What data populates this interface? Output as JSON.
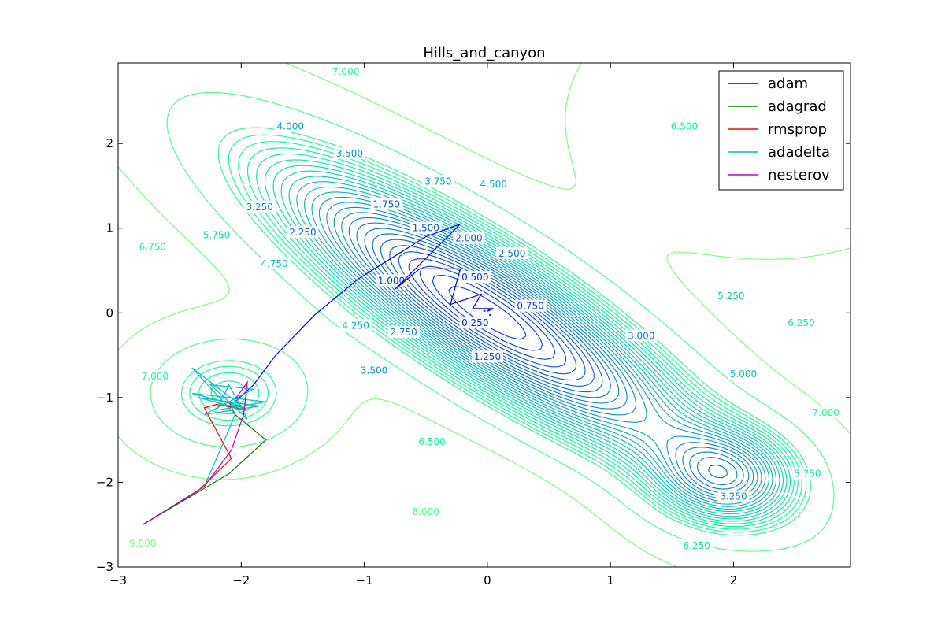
{
  "chart_data": {
    "type": "line",
    "title": "Hills_and_canyon",
    "xlabel": "",
    "ylabel": "",
    "xlim": [
      -3,
      2.95
    ],
    "ylim": [
      -3,
      2.95
    ],
    "x_ticks": [
      -3,
      -2,
      -1,
      0,
      1,
      2
    ],
    "y_ticks": [
      -3,
      -2,
      -1,
      0,
      1,
      2
    ],
    "x_tick_labels": [
      "−3",
      "−2",
      "−1",
      "0",
      "1",
      "2"
    ],
    "y_tick_labels": [
      "−3",
      "−2",
      "−1",
      "0",
      "1",
      "2"
    ],
    "grid": false,
    "legend_position": "top-right",
    "contours": {
      "levels": [
        0.25,
        0.5,
        0.75,
        1.0,
        1.25,
        1.5,
        1.75,
        2.0,
        2.25,
        2.5,
        2.75,
        3.0,
        3.25,
        3.5,
        3.75,
        4.0,
        4.25,
        4.5,
        4.75,
        5.0,
        5.25,
        5.5,
        5.75,
        6.0,
        6.25,
        6.5,
        6.75,
        7.0,
        8.0,
        9.0
      ],
      "labels": [
        {
          "text": "7.000",
          "x": -1.15,
          "y": 2.85
        },
        {
          "text": "4.000",
          "x": -1.6,
          "y": 2.2
        },
        {
          "text": "3.500",
          "x": -1.12,
          "y": 1.88
        },
        {
          "text": "3.750",
          "x": -0.4,
          "y": 1.55
        },
        {
          "text": "4.500",
          "x": 0.05,
          "y": 1.52
        },
        {
          "text": "6.500",
          "x": 1.6,
          "y": 2.2
        },
        {
          "text": "1.750",
          "x": -0.82,
          "y": 1.28
        },
        {
          "text": "1.500",
          "x": -0.5,
          "y": 1.0
        },
        {
          "text": "2.000",
          "x": -0.15,
          "y": 0.88
        },
        {
          "text": "2.500",
          "x": 0.2,
          "y": 0.7
        },
        {
          "text": "3.250",
          "x": -1.85,
          "y": 1.25
        },
        {
          "text": "2.250",
          "x": -1.5,
          "y": 0.95
        },
        {
          "text": "5.750",
          "x": -2.2,
          "y": 0.92
        },
        {
          "text": "4.750",
          "x": -1.73,
          "y": 0.58
        },
        {
          "text": "6.750",
          "x": -2.72,
          "y": 0.78
        },
        {
          "text": "1.000",
          "x": -0.78,
          "y": 0.38
        },
        {
          "text": "0.500",
          "x": -0.1,
          "y": 0.42
        },
        {
          "text": "0.750",
          "x": 0.35,
          "y": 0.08
        },
        {
          "text": "0.250",
          "x": -0.1,
          "y": -0.12
        },
        {
          "text": "4.250",
          "x": -1.07,
          "y": -0.15
        },
        {
          "text": "2.750",
          "x": -0.68,
          "y": -0.23
        },
        {
          "text": "1.250",
          "x": 0.0,
          "y": -0.52
        },
        {
          "text": "3.500",
          "x": -0.92,
          "y": -0.68
        },
        {
          "text": "3.000",
          "x": 1.25,
          "y": -0.27
        },
        {
          "text": "5.250",
          "x": 1.98,
          "y": 0.2
        },
        {
          "text": "5.000",
          "x": 2.08,
          "y": -0.72
        },
        {
          "text": "6.250",
          "x": 2.55,
          "y": -0.12
        },
        {
          "text": "7.000",
          "x": 2.75,
          "y": -1.18
        },
        {
          "text": "5.750",
          "x": 2.6,
          "y": -1.9
        },
        {
          "text": "7.000",
          "x": -2.7,
          "y": -0.75
        },
        {
          "text": "6.500",
          "x": -0.45,
          "y": -1.52
        },
        {
          "text": "8.000",
          "x": -0.5,
          "y": -2.35
        },
        {
          "text": "3.250",
          "x": 2.0,
          "y": -2.17
        },
        {
          "text": "6.250",
          "x": 1.7,
          "y": -2.75
        },
        {
          "text": "9.000",
          "x": -2.8,
          "y": -2.72
        }
      ]
    },
    "series": [
      {
        "name": "adam",
        "color": "#0000ff",
        "points": [
          [
            -2.05,
            -1.05
          ],
          [
            -1.9,
            -0.85
          ],
          [
            -1.72,
            -0.5
          ],
          [
            -1.4,
            -0.02
          ],
          [
            -1.05,
            0.4
          ],
          [
            -0.5,
            0.9
          ],
          [
            -0.22,
            1.05
          ],
          [
            -0.75,
            0.28
          ],
          [
            -0.55,
            0.52
          ],
          [
            -0.22,
            0.52
          ],
          [
            -0.3,
            0.1
          ],
          [
            -0.05,
            0.22
          ],
          [
            -0.12,
            0.05
          ],
          [
            0.05,
            0.05
          ],
          [
            0.0,
            0.02
          ],
          [
            0.02,
            0.05
          ]
        ]
      },
      {
        "name": "adagrad",
        "color": "#008000",
        "points": [
          [
            -2.8,
            -2.5
          ],
          [
            -2.1,
            -1.9
          ],
          [
            -1.8,
            -1.5
          ],
          [
            -2.05,
            -1.2
          ],
          [
            -2.1,
            -1.05
          ]
        ]
      },
      {
        "name": "rmsprop",
        "color": "#ff0000",
        "points": [
          [
            -2.8,
            -2.5
          ],
          [
            -2.35,
            -2.1
          ],
          [
            -2.08,
            -1.72
          ],
          [
            -2.3,
            -1.12
          ],
          [
            -2.2,
            -1.08
          ],
          [
            -1.95,
            -1.15
          ],
          [
            -2.1,
            -1.05
          ]
        ]
      },
      {
        "name": "adadelta",
        "color": "#00bfbf",
        "points": [
          [
            -2.8,
            -2.5
          ],
          [
            -2.3,
            -2.05
          ],
          [
            -2.15,
            -1.55
          ],
          [
            -2.05,
            -1.2
          ],
          [
            -2.4,
            -0.65
          ],
          [
            -1.95,
            -1.15
          ],
          [
            -2.35,
            -1.0
          ],
          [
            -1.85,
            -1.1
          ],
          [
            -2.3,
            -1.2
          ],
          [
            -1.9,
            -0.9
          ],
          [
            -2.25,
            -0.85
          ],
          [
            -1.95,
            -1.25
          ],
          [
            -2.1,
            -0.85
          ],
          [
            -2.2,
            -1.15
          ],
          [
            -1.8,
            -1.05
          ],
          [
            -2.4,
            -0.95
          ],
          [
            -2.0,
            -1.1
          ]
        ]
      },
      {
        "name": "nesterov",
        "color": "#bf00bf",
        "points": [
          [
            -2.8,
            -2.5
          ],
          [
            -2.3,
            -2.05
          ],
          [
            -2.08,
            -1.62
          ],
          [
            -1.98,
            -1.2
          ],
          [
            -1.95,
            -0.82
          ],
          [
            -2.05,
            -1.02
          ]
        ]
      }
    ]
  }
}
